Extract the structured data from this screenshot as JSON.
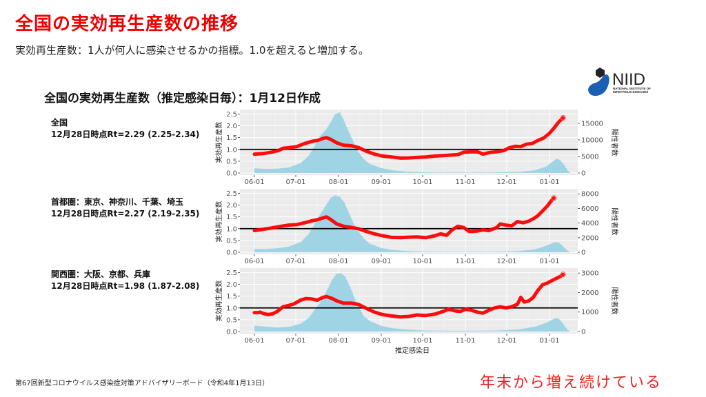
{
  "header": {
    "title": "全国の実効再生産数の推移",
    "subtitle": "実効再生産数：1人が何人に感染させるかの指標。1.0を超えると増加する。"
  },
  "logo": {
    "text": "NIID",
    "subtext_line1": "NATIONAL INSTITUTE OF",
    "subtext_line2": "INFECTIOUS DISEASES",
    "colors": {
      "blue": "#1a5fb4",
      "dark": "#222222"
    }
  },
  "chart_title": "全国の実効再生産数（推定感染日毎）：1月12日作成",
  "footer": {
    "source": "第67回新型コロナウイルス感染症対策アドバイザリーボード（令和4年1月13日）",
    "note": "年末から増え続けている"
  },
  "colors": {
    "rt_line": "#ff0000",
    "cases_bar": "#9fd4e4",
    "plot_bg": "#ebebeb",
    "threshold": "#000000",
    "title": "#ee0000"
  },
  "chart_data": [
    {
      "type": "line",
      "region_label": "全国",
      "rt_label": "12月28日時点Rt=2.29 (2.25-2.34)",
      "ylabel": "実効再生産数",
      "y2label": "陽性者数",
      "xlabel": "",
      "x_ticks": [
        "06-01",
        "07-01",
        "08-01",
        "09-01",
        "10-01",
        "11-01",
        "12-01",
        "01-01"
      ],
      "y_ticks": [
        "0.0",
        "0.5",
        "1.0",
        "1.5",
        "2.0",
        "2.5"
      ],
      "y2_ticks": [
        "0",
        "5000",
        "10000",
        "15000"
      ],
      "ylim": [
        0,
        2.6
      ],
      "y2lim": [
        0,
        18500
      ],
      "threshold": 1.0,
      "rt_series_day_value": [
        [
          0,
          0.8
        ],
        [
          7,
          0.82
        ],
        [
          14,
          0.87
        ],
        [
          21,
          0.95
        ],
        [
          25,
          1.05
        ],
        [
          30,
          1.07
        ],
        [
          37,
          1.12
        ],
        [
          44,
          1.25
        ],
        [
          51,
          1.35
        ],
        [
          55,
          1.38
        ],
        [
          61,
          1.48
        ],
        [
          63,
          1.5
        ],
        [
          67,
          1.42
        ],
        [
          72,
          1.28
        ],
        [
          78,
          1.18
        ],
        [
          85,
          1.15
        ],
        [
          91,
          1.08
        ],
        [
          98,
          0.92
        ],
        [
          105,
          0.8
        ],
        [
          112,
          0.72
        ],
        [
          120,
          0.68
        ],
        [
          128,
          0.63
        ],
        [
          135,
          0.64
        ],
        [
          142,
          0.66
        ],
        [
          150,
          0.68
        ],
        [
          158,
          0.72
        ],
        [
          165,
          0.74
        ],
        [
          172,
          0.76
        ],
        [
          178,
          0.78
        ],
        [
          183,
          0.88
        ],
        [
          190,
          0.9
        ],
        [
          195,
          0.9
        ],
        [
          200,
          0.8
        ],
        [
          206,
          0.87
        ],
        [
          212,
          0.9
        ],
        [
          218,
          0.95
        ],
        [
          223,
          1.07
        ],
        [
          228,
          1.13
        ],
        [
          233,
          1.12
        ],
        [
          238,
          1.22
        ],
        [
          243,
          1.25
        ],
        [
          248,
          1.38
        ],
        [
          253,
          1.48
        ],
        [
          258,
          1.68
        ],
        [
          262,
          1.9
        ],
        [
          266,
          2.15
        ],
        [
          270,
          2.34
        ]
      ],
      "cases_series_day_value": [
        [
          0,
          1400
        ],
        [
          10,
          1200
        ],
        [
          20,
          1300
        ],
        [
          30,
          1700
        ],
        [
          40,
          3000
        ],
        [
          47,
          5200
        ],
        [
          52,
          8000
        ],
        [
          57,
          11200
        ],
        [
          62,
          13000
        ],
        [
          66,
          15200
        ],
        [
          70,
          17700
        ],
        [
          74,
          18300
        ],
        [
          78,
          15500
        ],
        [
          82,
          12400
        ],
        [
          86,
          9300
        ],
        [
          90,
          6500
        ],
        [
          95,
          4200
        ],
        [
          100,
          2800
        ],
        [
          110,
          1500
        ],
        [
          120,
          800
        ],
        [
          135,
          350
        ],
        [
          150,
          180
        ],
        [
          170,
          130
        ],
        [
          190,
          130
        ],
        [
          210,
          170
        ],
        [
          230,
          300
        ],
        [
          245,
          800
        ],
        [
          255,
          2000
        ],
        [
          261,
          3600
        ],
        [
          264,
          4300
        ],
        [
          267,
          3800
        ],
        [
          270,
          2600
        ],
        [
          273,
          900
        ],
        [
          275,
          200
        ]
      ]
    },
    {
      "type": "line",
      "region_label": "首都圏：東京、神奈川、千葉、埼玉",
      "rt_label": "12月28日時点Rt=2.27 (2.19-2.35)",
      "ylabel": "実効再生産数",
      "y2label": "陽性者数",
      "xlabel": "",
      "x_ticks": [
        "06-01",
        "07-01",
        "08-01",
        "09-01",
        "10-01",
        "11-01",
        "12-01",
        "01-01"
      ],
      "y_ticks": [
        "0.0",
        "0.5",
        "1.0",
        "1.5",
        "2.0",
        "2.5"
      ],
      "y2_ticks": [
        "0",
        "2000",
        "4000",
        "6000",
        "8000"
      ],
      "ylim": [
        0,
        2.6
      ],
      "y2lim": [
        0,
        8400
      ],
      "threshold": 1.0,
      "rt_series_day_value": [
        [
          0,
          0.92
        ],
        [
          7,
          0.97
        ],
        [
          14,
          1.02
        ],
        [
          21,
          1.08
        ],
        [
          30,
          1.15
        ],
        [
          37,
          1.17
        ],
        [
          44,
          1.25
        ],
        [
          50,
          1.33
        ],
        [
          55,
          1.38
        ],
        [
          61,
          1.47
        ],
        [
          63,
          1.5
        ],
        [
          67,
          1.38
        ],
        [
          72,
          1.2
        ],
        [
          78,
          1.1
        ],
        [
          85,
          1.05
        ],
        [
          91,
          1.0
        ],
        [
          98,
          0.88
        ],
        [
          105,
          0.78
        ],
        [
          112,
          0.7
        ],
        [
          120,
          0.63
        ],
        [
          128,
          0.62
        ],
        [
          135,
          0.64
        ],
        [
          142,
          0.65
        ],
        [
          150,
          0.62
        ],
        [
          158,
          0.7
        ],
        [
          163,
          0.78
        ],
        [
          168,
          0.72
        ],
        [
          173,
          0.95
        ],
        [
          178,
          1.1
        ],
        [
          183,
          1.05
        ],
        [
          188,
          0.88
        ],
        [
          195,
          0.9
        ],
        [
          200,
          0.95
        ],
        [
          205,
          0.92
        ],
        [
          212,
          1.05
        ],
        [
          215,
          1.2
        ],
        [
          220,
          1.15
        ],
        [
          225,
          1.12
        ],
        [
          230,
          1.3
        ],
        [
          235,
          1.25
        ],
        [
          240,
          1.32
        ],
        [
          244,
          1.42
        ],
        [
          248,
          1.55
        ],
        [
          252,
          1.75
        ],
        [
          256,
          1.95
        ],
        [
          260,
          2.2
        ],
        [
          262,
          2.3
        ]
      ],
      "cases_series_day_value": [
        [
          0,
          450
        ],
        [
          10,
          450
        ],
        [
          20,
          550
        ],
        [
          30,
          800
        ],
        [
          40,
          1400
        ],
        [
          47,
          2500
        ],
        [
          52,
          3800
        ],
        [
          57,
          5200
        ],
        [
          62,
          6400
        ],
        [
          66,
          7400
        ],
        [
          70,
          7800
        ],
        [
          74,
          7600
        ],
        [
          78,
          6800
        ],
        [
          82,
          5400
        ],
        [
          86,
          4000
        ],
        [
          90,
          2900
        ],
        [
          95,
          1900
        ],
        [
          100,
          1200
        ],
        [
          110,
          600
        ],
        [
          120,
          320
        ],
        [
          135,
          150
        ],
        [
          150,
          80
        ],
        [
          170,
          50
        ],
        [
          190,
          50
        ],
        [
          210,
          70
        ],
        [
          230,
          150
        ],
        [
          245,
          400
        ],
        [
          255,
          900
        ],
        [
          261,
          1300
        ],
        [
          264,
          1400
        ],
        [
          267,
          1150
        ],
        [
          270,
          700
        ],
        [
          273,
          250
        ],
        [
          275,
          50
        ]
      ]
    },
    {
      "type": "line",
      "region_label": "関西圏：大阪、京都、兵庫",
      "rt_label": "12月28日時点Rt=1.98 (1.87-2.08)",
      "ylabel": "実効再生産数",
      "y2label": "陽性者数",
      "xlabel": "推定感染日",
      "x_ticks": [
        "06-01",
        "07-01",
        "08-01",
        "09-01",
        "10-01",
        "11-01",
        "12-01",
        "01-01"
      ],
      "y_ticks": [
        "0.0",
        "0.5",
        "1.0",
        "1.5",
        "2.0",
        "2.5"
      ],
      "y2_ticks": [
        "0",
        "1000",
        "2000",
        "3000"
      ],
      "ylim": [
        0,
        2.6
      ],
      "y2lim": [
        0,
        3150
      ],
      "threshold": 1.0,
      "rt_series_day_value": [
        [
          0,
          0.8
        ],
        [
          3,
          0.8
        ],
        [
          5,
          0.82
        ],
        [
          8,
          0.76
        ],
        [
          12,
          0.72
        ],
        [
          16,
          0.75
        ],
        [
          20,
          0.85
        ],
        [
          25,
          1.05
        ],
        [
          30,
          1.1
        ],
        [
          35,
          1.18
        ],
        [
          40,
          1.32
        ],
        [
          45,
          1.4
        ],
        [
          50,
          1.38
        ],
        [
          55,
          1.33
        ],
        [
          60,
          1.45
        ],
        [
          63,
          1.48
        ],
        [
          68,
          1.4
        ],
        [
          72,
          1.3
        ],
        [
          78,
          1.2
        ],
        [
          85,
          1.2
        ],
        [
          91,
          1.15
        ],
        [
          98,
          0.98
        ],
        [
          105,
          0.82
        ],
        [
          112,
          0.72
        ],
        [
          120,
          0.66
        ],
        [
          128,
          0.62
        ],
        [
          135,
          0.64
        ],
        [
          142,
          0.7
        ],
        [
          150,
          0.68
        ],
        [
          158,
          0.74
        ],
        [
          165,
          0.85
        ],
        [
          170,
          0.95
        ],
        [
          175,
          0.88
        ],
        [
          180,
          0.85
        ],
        [
          185,
          0.95
        ],
        [
          190,
          0.9
        ],
        [
          195,
          0.82
        ],
        [
          200,
          0.78
        ],
        [
          205,
          0.9
        ],
        [
          210,
          1.0
        ],
        [
          215,
          1.05
        ],
        [
          220,
          1.0
        ],
        [
          225,
          1.05
        ],
        [
          230,
          1.15
        ],
        [
          233,
          1.45
        ],
        [
          236,
          1.25
        ],
        [
          240,
          1.3
        ],
        [
          244,
          1.45
        ],
        [
          248,
          1.75
        ],
        [
          252,
          1.98
        ],
        [
          256,
          2.05
        ],
        [
          260,
          2.15
        ],
        [
          264,
          2.25
        ],
        [
          268,
          2.35
        ],
        [
          270,
          2.42
        ]
      ],
      "cases_series_day_value": [
        [
          0,
          300
        ],
        [
          10,
          250
        ],
        [
          20,
          200
        ],
        [
          30,
          250
        ],
        [
          40,
          400
        ],
        [
          47,
          700
        ],
        [
          52,
          1100
        ],
        [
          57,
          1500
        ],
        [
          62,
          2000
        ],
        [
          67,
          2600
        ],
        [
          71,
          2950
        ],
        [
          75,
          3000
        ],
        [
          79,
          2800
        ],
        [
          83,
          2300
        ],
        [
          87,
          1700
        ],
        [
          91,
          1200
        ],
        [
          95,
          800
        ],
        [
          100,
          550
        ],
        [
          110,
          300
        ],
        [
          120,
          170
        ],
        [
          135,
          90
        ],
        [
          150,
          50
        ],
        [
          170,
          40
        ],
        [
          190,
          40
        ],
        [
          210,
          50
        ],
        [
          230,
          100
        ],
        [
          245,
          250
        ],
        [
          255,
          450
        ],
        [
          261,
          640
        ],
        [
          264,
          700
        ],
        [
          267,
          580
        ],
        [
          270,
          350
        ],
        [
          273,
          100
        ],
        [
          275,
          20
        ]
      ]
    }
  ]
}
